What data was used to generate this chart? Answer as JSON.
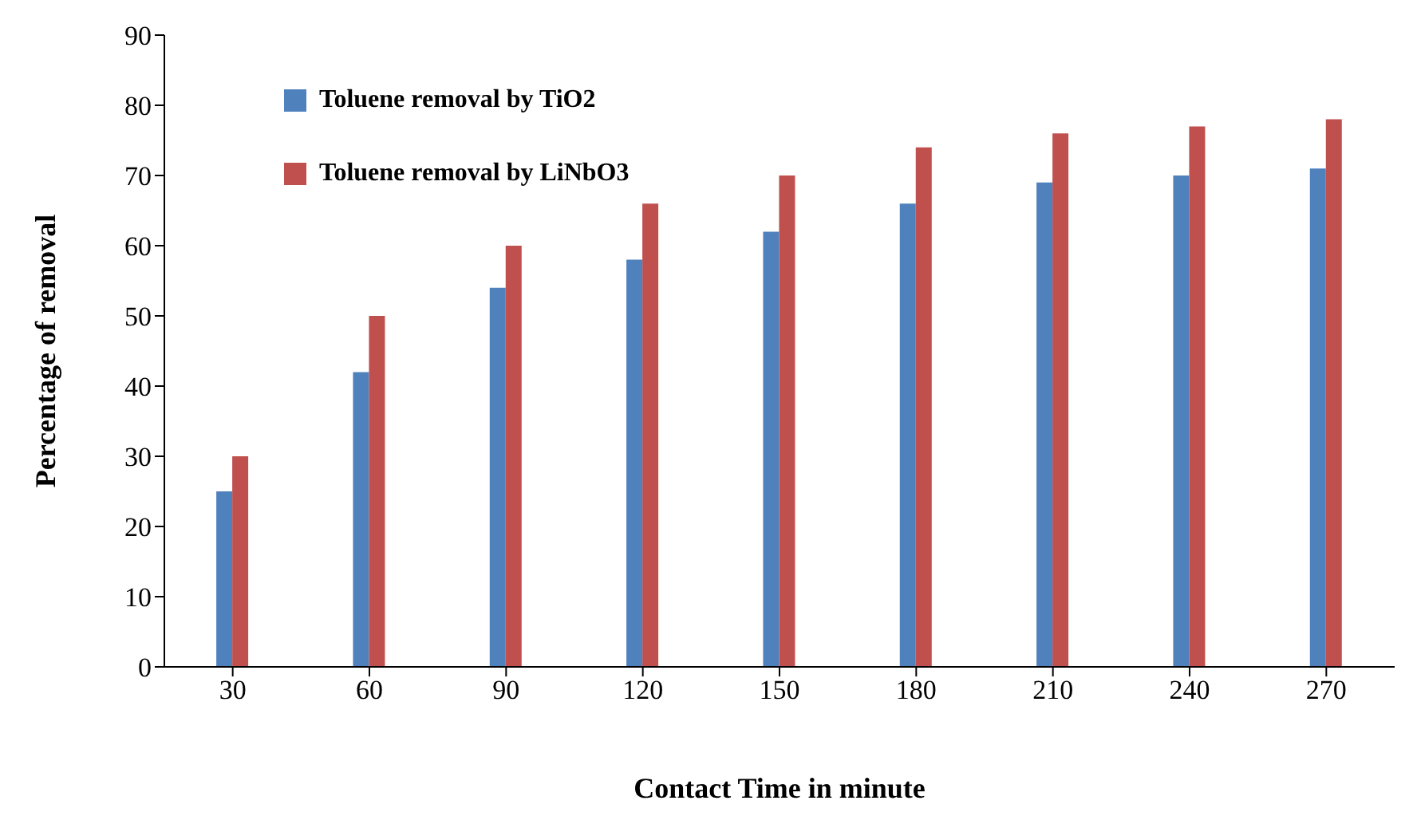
{
  "chart_data": {
    "type": "bar",
    "xlabel": "Contact Time in minute",
    "ylabel": "Percentage of removal",
    "categories": [
      "30",
      "60",
      "90",
      "120",
      "150",
      "180",
      "210",
      "240",
      "270"
    ],
    "series": [
      {
        "name": "Toluene removal by TiO2",
        "color": "#4f81bd",
        "values": [
          25,
          42,
          54,
          58,
          62,
          66,
          69,
          70,
          71
        ]
      },
      {
        "name": "Toluene removal by LiNbO3",
        "color": "#c0504d",
        "values": [
          30,
          50,
          60,
          66,
          70,
          74,
          76,
          77,
          78
        ]
      }
    ],
    "ylim": [
      0,
      90
    ],
    "yticks": [
      0,
      10,
      20,
      30,
      40,
      50,
      60,
      70,
      80,
      90
    ],
    "grid": false,
    "legend": "top left"
  }
}
